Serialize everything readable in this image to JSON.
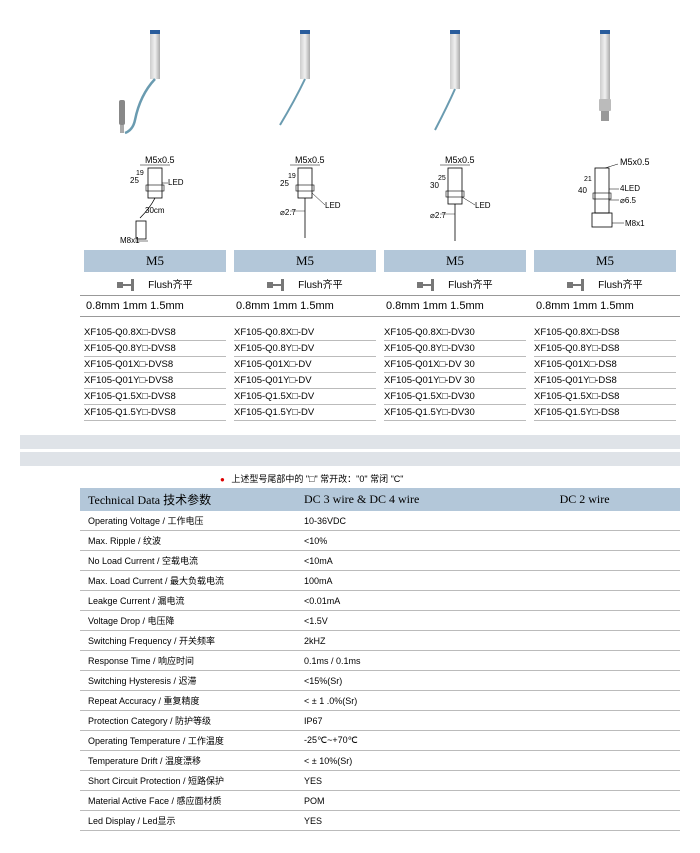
{
  "colors": {
    "band": "#b3c7d9",
    "stripe": "#dfe3e8",
    "cable": "#6a9bb0",
    "metal_light": "#e8e8e8",
    "metal_dark": "#b0b0b0",
    "cap": "#2a5d9c"
  },
  "headers": [
    "M5",
    "M5",
    "M5",
    "M5"
  ],
  "flush_label": "Flush齐平",
  "sizes": "0.8mm  1mm  1.5mm",
  "thread_label": "M5x0.5",
  "led_label": "LED",
  "dim_labels": {
    "col1": {
      "h1": "25",
      "h2": "19",
      "cable": "30cm",
      "conn": "M8x1"
    },
    "col2": {
      "h1": "25",
      "h2": "19",
      "dia": "⌀2.7"
    },
    "col3": {
      "h1": "30",
      "h2": "25",
      "dia": "⌀2.7"
    },
    "col4": {
      "h1": "40",
      "h2": "21",
      "led": "4LED",
      "dia": "⌀6.5",
      "conn": "M8x1"
    }
  },
  "models": [
    [
      "XF105-Q0.8X□-DVS8",
      "XF105-Q0.8Y□-DVS8",
      "XF105-Q01X□-DVS8",
      "XF105-Q01Y□-DVS8",
      "XF105-Q1.5X□-DVS8",
      "XF105-Q1.5Y□-DVS8"
    ],
    [
      "XF105-Q0.8X□-DV",
      "XF105-Q0.8Y□-DV",
      "XF105-Q01X□-DV",
      "XF105-Q01Y□-DV",
      "XF105-Q1.5X□-DV",
      "XF105-Q1.5Y□-DV"
    ],
    [
      "XF105-Q0.8X□-DV30",
      "XF105-Q0.8Y□-DV30",
      "XF105-Q01X□-DV 30",
      "XF105-Q01Y□-DV 30",
      "XF105-Q1.5X□-DV30",
      "XF105-Q1.5Y□-DV30"
    ],
    [
      "XF105-Q0.8X□-DS8",
      "XF105-Q0.8Y□-DS8",
      "XF105-Q01X□-DS8",
      "XF105-Q01Y□-DS8",
      "XF105-Q1.5X□-DS8",
      "XF105-Q1.5Y□-DS8"
    ]
  ],
  "note": "上述型号尾部中的 \"□\"    常开改：\"0\"  常闭  \"C\"",
  "tech_header": {
    "label": "Technical Data 技术参数",
    "col1": "DC 3 wire & DC 4 wire",
    "col2": "DC 2 wire"
  },
  "tech_rows": [
    {
      "label": "Operating Voltage / 工作电压",
      "val": "10-36VDC"
    },
    {
      "label": "Max. Ripple / 纹波",
      "val": "<10%"
    },
    {
      "label": "No Load Current / 空载电流",
      "val": "<10mA"
    },
    {
      "label": "Max. Load Current / 最大负载电流",
      "val": "100mA"
    },
    {
      "label": "Leakge Current / 漏电流",
      "val": "<0.01mA"
    },
    {
      "label": "Voltage Drop / 电压降",
      "val": "<1.5V"
    },
    {
      "label": "Switching Frequency / 开关频率",
      "val": "2kHZ"
    },
    {
      "label": "Response Time / 响应时间",
      "val": "0.1ms / 0.1ms"
    },
    {
      "label": "Switching Hysteresis / 迟滞",
      "val": "<15%(Sr)"
    },
    {
      "label": "Repeat Accuracy / 重复精度",
      "val": "< ± 1 .0%(Sr)"
    },
    {
      "label": "Protection Category / 防护等级",
      "val": "IP67"
    },
    {
      "label": "Operating Temperature / 工作温度",
      "val": "-25℃~+70℃"
    },
    {
      "label": "Temperature Drift / 温度漂移",
      "val": "< ± 10%(Sr)"
    },
    {
      "label": "Short Circuit Protection / 短路保护",
      "val": "YES"
    },
    {
      "label": "Material Active Face / 感应面材质",
      "val": "POM"
    },
    {
      "label": "Led Display / Led显示",
      "val": "YES"
    }
  ]
}
